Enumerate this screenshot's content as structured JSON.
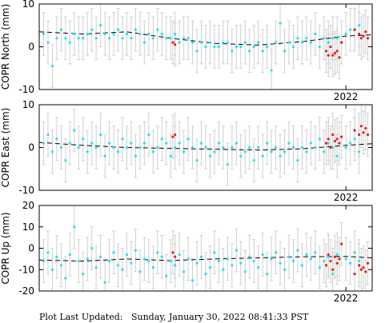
{
  "footer": "Plot Last Updated:   Sunday, January 30, 2022 08:41:33 PST",
  "colors": {
    "points": "#22e0ee",
    "recent_points": "#e0201a",
    "error_bars": "#cfcfcf",
    "trend": "#000000",
    "frame": "#000000"
  },
  "chart_data": [
    {
      "type": "scatter",
      "ylabel": "COPR North (mm)",
      "ylim": [
        -10,
        10
      ],
      "yticks": [
        -10,
        0,
        10
      ],
      "xlim": [
        2015.0,
        2022.6
      ],
      "xtick": {
        "value": 2022.0,
        "label": "2022"
      },
      "grid": false,
      "error_bar_mm": 5,
      "trend": {
        "x": [
          2015.0,
          2016.0,
          2017.0,
          2018.0,
          2019.0,
          2020.0,
          2021.0,
          2022.0,
          2022.6
        ],
        "y": [
          3.5,
          3.0,
          3.5,
          2.0,
          0.8,
          0.4,
          1.2,
          2.5,
          2.8
        ]
      },
      "series": [
        {
          "color_key": "points",
          "x": [
            2015.1,
            2015.2,
            2015.3,
            2015.4,
            2015.5,
            2015.6,
            2015.7,
            2015.8,
            2015.9,
            2016.0,
            2016.1,
            2016.2,
            2016.3,
            2016.4,
            2016.5,
            2016.6,
            2016.7,
            2016.8,
            2016.9,
            2017.0,
            2017.1,
            2017.2,
            2017.3,
            2017.4,
            2017.5,
            2017.6,
            2017.7,
            2017.8,
            2017.9,
            2018.0,
            2018.1,
            2018.2,
            2018.3,
            2018.4,
            2018.5,
            2018.6,
            2018.7,
            2018.8,
            2018.9,
            2019.0,
            2019.1,
            2019.2,
            2019.3,
            2019.4,
            2019.5,
            2019.6,
            2019.7,
            2019.8,
            2019.9,
            2020.0,
            2020.1,
            2020.2,
            2020.3,
            2020.4,
            2020.5,
            2020.6,
            2020.7,
            2020.8,
            2020.9,
            2021.0,
            2021.1,
            2021.2,
            2021.3,
            2021.4,
            2021.5,
            2021.6,
            2021.7,
            2021.8,
            2022.0,
            2022.1,
            2022.2,
            2022.3
          ],
          "y": [
            3,
            1,
            -4.5,
            2,
            4,
            2,
            1,
            3,
            2,
            2,
            3,
            4,
            2,
            5,
            3,
            2,
            3,
            4,
            2,
            3,
            2,
            4,
            3,
            1,
            3,
            2,
            4,
            3,
            2,
            2,
            3,
            1,
            2,
            2,
            1,
            -1,
            1,
            0,
            1,
            0,
            0,
            1,
            1,
            -1,
            0,
            0,
            1,
            -1,
            0,
            1,
            -1,
            0,
            -5.5,
            1,
            5.5,
            -1,
            1,
            0,
            2,
            1,
            2,
            1,
            3,
            0,
            2,
            1,
            2,
            2,
            3,
            4,
            4,
            5
          ]
        },
        {
          "color_key": "recent_points",
          "x": [
            2018.05,
            2018.1,
            2021.55,
            2021.6,
            2021.65,
            2021.7,
            2021.75,
            2021.8,
            2021.85,
            2021.9,
            2022.2,
            2022.3,
            2022.35,
            2022.4,
            2022.45,
            2022.5
          ],
          "y": [
            1,
            0.5,
            -1,
            -2,
            0,
            -2,
            -1.5,
            -1,
            -2.5,
            1,
            4,
            3,
            2,
            2.5,
            3.5,
            2
          ]
        }
      ]
    },
    {
      "type": "scatter",
      "ylabel": "COPR East (mm)",
      "ylim": [
        -10,
        10
      ],
      "yticks": [
        -10,
        0,
        10
      ],
      "xlim": [
        2015.0,
        2022.6
      ],
      "xtick": {
        "value": 2022.0,
        "label": "2022"
      },
      "grid": false,
      "error_bar_mm": 5,
      "trend": {
        "x": [
          2015.0,
          2016.0,
          2017.0,
          2018.0,
          2019.0,
          2020.0,
          2021.0,
          2022.0,
          2022.6
        ],
        "y": [
          1.2,
          0.5,
          0.0,
          -0.2,
          -0.4,
          -0.6,
          -0.3,
          0.5,
          0.9
        ]
      },
      "series": [
        {
          "color_key": "points",
          "x": [
            2015.1,
            2015.2,
            2015.3,
            2015.4,
            2015.5,
            2015.6,
            2015.7,
            2015.8,
            2015.9,
            2016.0,
            2016.1,
            2016.2,
            2016.3,
            2016.4,
            2016.5,
            2016.6,
            2016.7,
            2016.8,
            2016.9,
            2017.0,
            2017.1,
            2017.2,
            2017.3,
            2017.4,
            2017.5,
            2017.6,
            2017.7,
            2017.8,
            2017.9,
            2018.0,
            2018.1,
            2018.2,
            2018.3,
            2018.4,
            2018.5,
            2018.6,
            2018.7,
            2018.8,
            2018.9,
            2019.0,
            2019.1,
            2019.2,
            2019.3,
            2019.4,
            2019.5,
            2019.6,
            2019.7,
            2019.8,
            2019.9,
            2020.0,
            2020.1,
            2020.2,
            2020.3,
            2020.4,
            2020.5,
            2020.6,
            2020.7,
            2020.8,
            2020.9,
            2021.0,
            2021.1,
            2021.2,
            2021.3,
            2021.4,
            2021.5,
            2021.6,
            2021.7,
            2021.8,
            2022.0,
            2022.1,
            2022.2,
            2022.3
          ],
          "y": [
            1,
            3,
            -1,
            2,
            0,
            -3,
            1,
            4,
            0,
            2,
            -1,
            1,
            0,
            3,
            -2,
            1,
            0,
            -1,
            2,
            0,
            1,
            -2,
            0,
            1,
            3,
            -1,
            0,
            2,
            1,
            -2,
            0,
            1,
            -1,
            2,
            0,
            -3,
            1,
            0,
            -2,
            -1,
            1,
            0,
            -4,
            0,
            1,
            -2,
            -1,
            0,
            -3,
            0,
            -2,
            1,
            -1,
            0,
            -2,
            -1,
            1,
            0,
            -3,
            0,
            -1,
            1,
            0,
            2,
            -1,
            1,
            0,
            -2,
            0,
            1,
            2,
            -1
          ]
        },
        {
          "color_key": "recent_points",
          "x": [
            2018.05,
            2018.1,
            2021.55,
            2021.6,
            2021.65,
            2021.7,
            2021.75,
            2021.8,
            2021.85,
            2021.9,
            2022.2,
            2022.3,
            2022.35,
            2022.4,
            2022.45,
            2022.5
          ],
          "y": [
            2.5,
            3,
            1,
            2,
            0,
            3,
            1.5,
            2,
            1,
            2.5,
            4,
            3,
            5,
            3.5,
            4.5,
            3
          ]
        }
      ]
    },
    {
      "type": "scatter",
      "ylabel": "COPR Up (mm)",
      "ylim": [
        -20,
        20
      ],
      "yticks": [
        -20,
        -10,
        0,
        10,
        20
      ],
      "xlim": [
        2015.0,
        2022.6
      ],
      "xtick": {
        "value": 2022.0,
        "label": "2022"
      },
      "grid": false,
      "error_bar_mm": 10,
      "trend": {
        "x": [
          2015.0,
          2016.0,
          2017.0,
          2018.0,
          2019.0,
          2020.0,
          2021.0,
          2022.0,
          2022.6
        ],
        "y": [
          -5.5,
          -6.0,
          -5.0,
          -5.8,
          -5.0,
          -4.5,
          -4.0,
          -3.8,
          -4.5
        ]
      },
      "series": [
        {
          "color_key": "points",
          "x": [
            2015.1,
            2015.2,
            2015.3,
            2015.4,
            2015.5,
            2015.6,
            2015.7,
            2015.8,
            2015.9,
            2016.0,
            2016.1,
            2016.2,
            2016.3,
            2016.4,
            2016.5,
            2016.6,
            2016.7,
            2016.8,
            2016.9,
            2017.0,
            2017.1,
            2017.2,
            2017.3,
            2017.4,
            2017.5,
            2017.6,
            2017.7,
            2017.8,
            2017.9,
            2018.0,
            2018.1,
            2018.2,
            2018.3,
            2018.4,
            2018.5,
            2018.6,
            2018.7,
            2018.8,
            2018.9,
            2019.0,
            2019.1,
            2019.2,
            2019.3,
            2019.4,
            2019.5,
            2019.6,
            2019.7,
            2019.8,
            2019.9,
            2020.0,
            2020.1,
            2020.2,
            2020.3,
            2020.4,
            2020.5,
            2020.6,
            2020.7,
            2020.8,
            2020.9,
            2021.0,
            2021.1,
            2021.2,
            2021.3,
            2021.4,
            2021.5,
            2021.6,
            2021.7,
            2021.8,
            2022.0,
            2022.1,
            2022.2,
            2022.3
          ],
          "y": [
            -6,
            -2,
            -10,
            -4,
            -8,
            -14,
            -3,
            10,
            -6,
            -12,
            -5,
            0,
            -9,
            -4,
            -16,
            -6,
            -2,
            -8,
            -10,
            -3,
            -7,
            -1,
            -11,
            -5,
            -6,
            -9,
            -2,
            -4,
            -13,
            -6,
            -8,
            -3,
            -11,
            -5,
            -15,
            -7,
            -4,
            -12,
            -9,
            -2,
            -6,
            -10,
            -5,
            -8,
            -1,
            -7,
            -11,
            -4,
            -6,
            -9,
            -3,
            -12,
            -5,
            -2,
            -7,
            -10,
            -4,
            -6,
            -1,
            -8,
            -3,
            -5,
            -2,
            -9,
            -6,
            -4,
            -12,
            -3,
            -5,
            -7,
            -2,
            -6
          ]
        },
        {
          "color_key": "recent_points",
          "x": [
            2018.05,
            2018.1,
            2021.55,
            2021.6,
            2021.65,
            2021.7,
            2021.75,
            2021.8,
            2021.85,
            2021.9,
            2022.2,
            2022.3,
            2022.35,
            2022.4,
            2022.45,
            2022.5
          ],
          "y": [
            -2,
            -4,
            -8,
            -3,
            -6,
            -10,
            -4,
            -7,
            -5,
            2,
            -12,
            -8,
            -10,
            -9,
            -11,
            -7
          ]
        }
      ]
    }
  ]
}
